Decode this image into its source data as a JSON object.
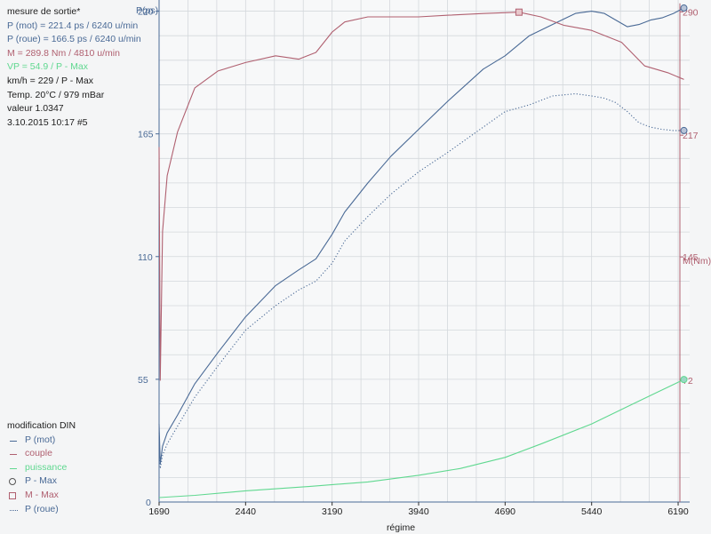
{
  "info": {
    "title": "mesure de sortie*",
    "lines": [
      {
        "text": "P (mot) = 221.4 ps / 6240 u/min",
        "color": "blue"
      },
      {
        "text": "P (roue) = 166.5 ps / 6240 u/min",
        "color": "blue"
      },
      {
        "text": "M = 289.8 Nm / 4810 u/min",
        "color": "red"
      },
      {
        "text": "VP = 54.9 / P - Max",
        "color": "green"
      },
      {
        "text": "km/h = 229 / P - Max",
        "color": "dark"
      },
      {
        "text": "Temp. 20°C / 979 mBar",
        "color": "dark"
      },
      {
        "text": "valeur 1.0347",
        "color": "dark"
      },
      {
        "text": "3.10.2015 10:17   #5",
        "color": "dark"
      }
    ]
  },
  "legend": {
    "title": "modification DIN",
    "items": [
      {
        "symbol": "line",
        "color": "#4a6a96",
        "label": "P (mot)"
      },
      {
        "symbol": "line",
        "color": "#b06070",
        "label": "couple"
      },
      {
        "symbol": "line",
        "color": "#60d890",
        "label": "puissance"
      },
      {
        "symbol": "circle",
        "color": "#4a6a96",
        "label": "P - Max"
      },
      {
        "symbol": "square",
        "color": "#b06070",
        "label": "M - Max"
      },
      {
        "symbol": "dots",
        "color": "#4a6a96",
        "label": "P (roue)"
      }
    ]
  },
  "colors": {
    "p_mot": "#4a6a96",
    "p_roue": "#4a6a96",
    "couple": "#b06070",
    "puissance": "#60d890",
    "grid": "#d4d8dc",
    "axis_left": "#4a6a96",
    "axis_right": "#b06070"
  },
  "chart_data": {
    "type": "line",
    "xlabel": "régime",
    "ylabel_left": "P(ps)",
    "ylabel_right": "M(Nm)",
    "xlim": [
      1690,
      6290
    ],
    "xticks": [
      1690,
      2440,
      3190,
      3940,
      4690,
      5440,
      6190
    ],
    "ylim_left": [
      0,
      225
    ],
    "yticks_left": [
      55,
      110,
      165,
      220
    ],
    "ylim_right": [
      0,
      297
    ],
    "yticks_right": [
      72,
      145,
      217,
      290
    ],
    "grid": true,
    "series": [
      {
        "key": "p_mot",
        "axis": "left",
        "style": "solid",
        "x": [
          1690,
          1700,
          1720,
          1760,
          1850,
          2000,
          2200,
          2440,
          2700,
          2900,
          3050,
          3190,
          3300,
          3500,
          3700,
          3940,
          4200,
          4500,
          4690,
          4900,
          5100,
          5300,
          5440,
          5550,
          5650,
          5750,
          5850,
          5950,
          6050,
          6150,
          6240
        ],
        "y": [
          35,
          17,
          25,
          31,
          39,
          53,
          67,
          83,
          97,
          104,
          109,
          120,
          130,
          143,
          155,
          167,
          180,
          194,
          200,
          209,
          214,
          219,
          220,
          219,
          216,
          213,
          214,
          216,
          217,
          219,
          221.4
        ]
      },
      {
        "key": "p_roue",
        "axis": "left",
        "style": "dotted",
        "x": [
          1690,
          1700,
          1720,
          1760,
          1850,
          2000,
          2200,
          2440,
          2700,
          2900,
          3050,
          3190,
          3300,
          3500,
          3700,
          3940,
          4200,
          4500,
          4690,
          4900,
          5100,
          5300,
          5440,
          5550,
          5650,
          5750,
          5850,
          5950,
          6050,
          6150,
          6240
        ],
        "y": [
          31,
          15,
          21,
          26,
          34,
          47,
          61,
          77,
          88,
          95,
          99,
          107,
          117,
          128,
          138,
          148,
          157,
          168,
          175,
          178,
          182,
          183,
          182,
          181,
          179,
          175,
          170,
          168,
          167,
          166.5,
          166.5
        ]
      },
      {
        "key": "couple",
        "axis": "right",
        "style": "solid",
        "x": [
          1690,
          1700,
          1720,
          1760,
          1850,
          2000,
          2200,
          2440,
          2700,
          2900,
          3050,
          3190,
          3300,
          3500,
          3700,
          3940,
          4200,
          4500,
          4810,
          5000,
          5200,
          5440,
          5700,
          5900,
          6100,
          6240
        ],
        "y": [
          210,
          72,
          160,
          193,
          219,
          245,
          255,
          260,
          264,
          262,
          266,
          278,
          284,
          287,
          287,
          287,
          288,
          289,
          289.8,
          287,
          282,
          279,
          272,
          258,
          254,
          250
        ]
      },
      {
        "key": "puissance",
        "axis": "left",
        "style": "solid",
        "x": [
          1690,
          2000,
          2440,
          3000,
          3500,
          3940,
          4300,
          4690,
          5000,
          5440,
          5800,
          6000,
          6240
        ],
        "y": [
          2,
          3,
          5,
          7,
          9,
          12,
          15,
          20,
          26,
          35,
          44,
          49,
          54.9
        ]
      }
    ],
    "markers": [
      {
        "label": "P - Max",
        "series": "p_mot",
        "x": 6240,
        "y": 221.4,
        "shape": "circle"
      },
      {
        "label": "P - Max",
        "series": "p_roue",
        "x": 6240,
        "y": 166.5,
        "shape": "circle"
      },
      {
        "label": "M - Max",
        "series": "couple",
        "x": 4810,
        "y": 289.8,
        "shape": "square"
      },
      {
        "label": "P - Max",
        "series": "puissance",
        "x": 6240,
        "y": 54.9,
        "shape": "circle"
      }
    ]
  }
}
